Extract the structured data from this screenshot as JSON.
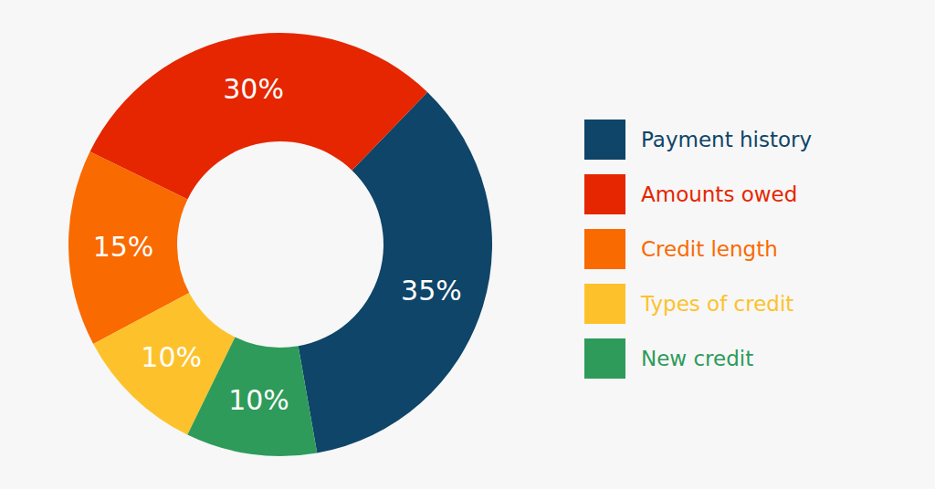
{
  "chart_data": {
    "type": "pie",
    "categories": [
      "Payment history",
      "Amounts owed",
      "Credit length",
      "Types of credit",
      "New credit"
    ],
    "values": [
      35,
      30,
      15,
      10,
      10
    ],
    "value_labels": [
      "35%",
      "30%",
      "15%",
      "10%",
      "10%"
    ],
    "colors": [
      "#0e4568",
      "#e52600",
      "#f96a00",
      "#fdc22b",
      "#2e9b5a"
    ],
    "data_labels": true,
    "legend": "right"
  }
}
